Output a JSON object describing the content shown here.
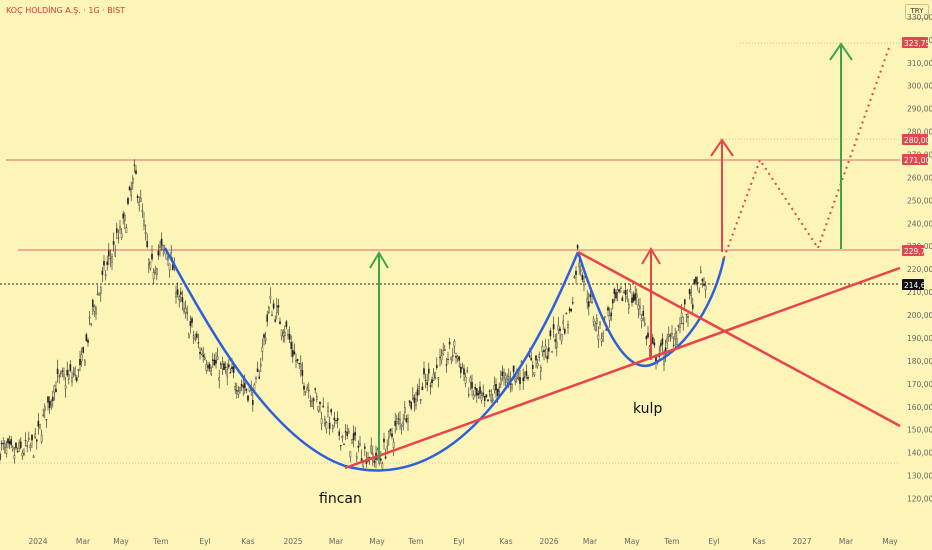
{
  "header": {
    "symbol_title": "KOÇ HOLDİNG A.Ş. · 1G · BIST",
    "currency_button": "TRY"
  },
  "colors": {
    "background": "#fdf5b8",
    "candle": "#222222",
    "cup_curve": "#2f5fd9",
    "trendline": "#e8444a",
    "resistance_line": "#e06670",
    "target_arrow_red": "#e8444a",
    "target_arrow_green": "#3ea64a",
    "price_tag_red": "#e0484e",
    "current_price_tag": "#111111"
  },
  "annotations": {
    "cup": "fincan",
    "handle": "kulp"
  },
  "price_tags": {
    "target_2": "323,75",
    "target_1": "280,00",
    "resistance_top": "271,00",
    "neckline": "229,7",
    "current": "214,6"
  },
  "chart_data": {
    "type": "line",
    "title": "KOÇ HOLDİNG A.Ş. · 1G · BIST",
    "xlabel": "",
    "ylabel": "",
    "x_ticks": [
      "2024",
      "Mar",
      "May",
      "Tem",
      "Eyl",
      "Kas",
      "2025",
      "Mar",
      "May",
      "Tem",
      "Eyl",
      "Kas",
      "2026",
      "Mar",
      "May",
      "Tem",
      "Eyl",
      "Kas",
      "2027",
      "Mar",
      "May"
    ],
    "y_ticks": [
      "330,00",
      "320,00",
      "310,00",
      "300,00",
      "290,00",
      "280,00",
      "270,00",
      "260,00",
      "250,00",
      "240,00",
      "230,00",
      "220,00",
      "210,00",
      "200,00",
      "190,00",
      "180,00",
      "170,00",
      "160,00",
      "150,00",
      "140,00",
      "130,00",
      "120,00"
    ],
    "ylim": [
      115,
      333
    ],
    "series_candles_approx_close": {
      "name": "",
      "points": [
        [
          "2024-01",
          142
        ],
        [
          "2024-02",
          140
        ],
        [
          "2024-03",
          150
        ],
        [
          "2024-04",
          175
        ],
        [
          "2024-05",
          215
        ],
        [
          "2024-06",
          262
        ],
        [
          "2024-07",
          218
        ],
        [
          "2024-08",
          220
        ],
        [
          "2024-09",
          195
        ],
        [
          "2024-10",
          182
        ],
        [
          "2024-11",
          170
        ],
        [
          "2024-12",
          200
        ],
        [
          "2025-01",
          180
        ],
        [
          "2025-02",
          160
        ],
        [
          "2025-03",
          150
        ],
        [
          "2025-04",
          135
        ],
        [
          "2025-05",
          140
        ],
        [
          "2025-06",
          165
        ],
        [
          "2025-07",
          175
        ],
        [
          "2025-08",
          185
        ],
        [
          "2025-09",
          155
        ],
        [
          "2025-10",
          168
        ],
        [
          "2025-11",
          180
        ],
        [
          "2025-12",
          190
        ],
        [
          "2026-01",
          185
        ],
        [
          "2026-02",
          200
        ],
        [
          "2026-03",
          225
        ],
        [
          "2026-04",
          200
        ],
        [
          "2026-05",
          210
        ],
        [
          "2026-06",
          180
        ],
        [
          "2026-07",
          195
        ],
        [
          "2026-08",
          214.6
        ]
      ]
    },
    "cup_curve": {
      "start": [
        "2024-08",
        229.7
      ],
      "bottom": [
        "2025-04",
        131
      ],
      "end": [
        "2026-03",
        229.7
      ]
    },
    "handle_curve": {
      "start": [
        "2026-03",
        229.7
      ],
      "bottom": [
        "2026-05",
        178
      ],
      "end": [
        "2026-09",
        229.7
      ]
    },
    "trendlines": [
      {
        "from": [
          "2025-05",
          133
        ],
        "to": [
          "2027-05",
          221
        ]
      },
      {
        "from": [
          "2026-03",
          229.7
        ],
        "to": [
          "2027-05",
          150
        ]
      }
    ],
    "horizontal_levels": [
      271,
      229.7,
      214.6
    ],
    "targets": [
      280,
      323.75
    ],
    "projection_path": [
      [
        "2026-09",
        229.7
      ],
      [
        "2026-11",
        270
      ],
      [
        "2027-01",
        230
      ],
      [
        "2027-03",
        285
      ],
      [
        "2027-05",
        322
      ]
    ],
    "measured_moves": [
      {
        "color": "green",
        "x": "2025-05",
        "from": 133,
        "to": 229.7
      },
      {
        "color": "red",
        "x": "2026-05",
        "from": 178,
        "to": 229.7
      },
      {
        "color": "red",
        "x": "2026-09",
        "from": 229.7,
        "to": 280
      },
      {
        "color": "green",
        "x": "2027-03",
        "from": 229.7,
        "to": 323.75
      }
    ]
  }
}
